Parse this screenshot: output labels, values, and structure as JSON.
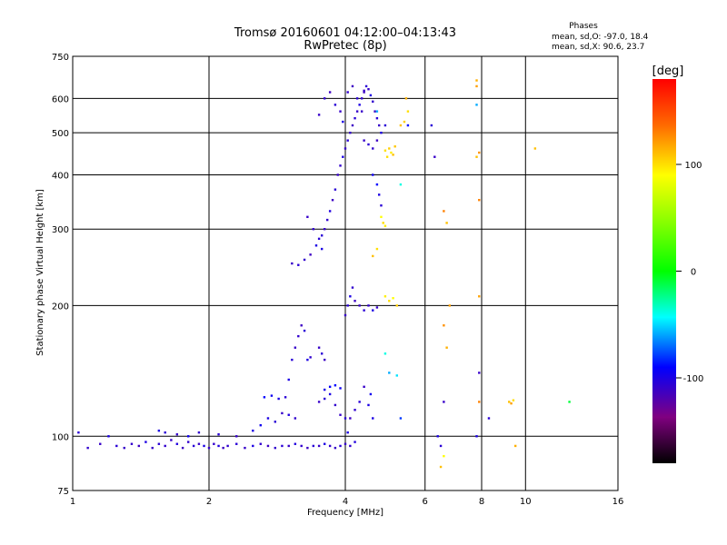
{
  "chart_data": {
    "type": "scatter",
    "title": "Tromsø 20160601 04:12:00–04:13:43",
    "subtitle": "RwPretec (8p)",
    "xlabel": "Frequency [MHz]",
    "ylabel": "Stationary phase Virtual Height [km]",
    "x_scale": "log",
    "y_scale": "log",
    "xlim": [
      1,
      16
    ],
    "ylim": [
      75,
      750
    ],
    "x_ticks": [
      1,
      2,
      4,
      6,
      8,
      10,
      16
    ],
    "y_ticks": [
      75,
      100,
      200,
      300,
      400,
      500,
      600,
      750
    ],
    "phases_info": {
      "title": "Phases",
      "line_o": "mean, sd,O: -97.0, 18.4",
      "line_x": "mean, sd,X:  90.6, 23.7"
    },
    "colorbar": {
      "label": "[deg]",
      "range": [
        -180,
        180
      ],
      "ticks": [
        100,
        0,
        -100
      ],
      "tick_labels": [
        "100",
        "0",
        "-100"
      ]
    },
    "grid": true,
    "series": [
      {
        "points": [
          [
            0.97,
            90,
            -110
          ],
          [
            1.03,
            102,
            -105
          ],
          [
            1.08,
            94,
            -108
          ],
          [
            1.15,
            96,
            -110
          ],
          [
            1.2,
            100,
            -100
          ],
          [
            1.25,
            95,
            -105
          ],
          [
            1.3,
            94,
            -110
          ],
          [
            1.35,
            96,
            -108
          ],
          [
            1.4,
            95,
            -112
          ],
          [
            1.45,
            97,
            -100
          ],
          [
            1.5,
            94,
            -110
          ],
          [
            1.55,
            96,
            -105
          ],
          [
            1.6,
            95,
            -108
          ],
          [
            1.65,
            98,
            -110
          ],
          [
            1.7,
            96,
            -102
          ],
          [
            1.75,
            94,
            -112
          ],
          [
            1.8,
            97,
            -108
          ],
          [
            1.85,
            95,
            -105
          ],
          [
            1.9,
            96,
            -110
          ],
          [
            1.95,
            95,
            -100
          ],
          [
            2.0,
            94,
            -110
          ],
          [
            2.05,
            96,
            -108
          ],
          [
            2.1,
            95,
            -102
          ],
          [
            2.15,
            94,
            -112
          ],
          [
            2.2,
            95,
            -108
          ],
          [
            2.3,
            96,
            -105
          ],
          [
            2.4,
            94,
            -110
          ],
          [
            2.5,
            95,
            -100
          ],
          [
            2.6,
            96,
            -108
          ],
          [
            2.7,
            95,
            -112
          ],
          [
            2.8,
            94,
            -108
          ],
          [
            2.9,
            95,
            -105
          ],
          [
            3.0,
            95,
            -110
          ],
          [
            3.1,
            96,
            -102
          ],
          [
            3.2,
            95,
            -108
          ],
          [
            3.3,
            94,
            -112
          ],
          [
            3.4,
            95,
            -105
          ],
          [
            3.5,
            95,
            -110
          ],
          [
            3.6,
            96,
            -100
          ],
          [
            3.7,
            95,
            -108
          ],
          [
            3.8,
            94,
            -110
          ],
          [
            3.9,
            95,
            -105
          ],
          [
            4.0,
            96,
            -110
          ],
          [
            4.1,
            95,
            -108
          ],
          [
            4.2,
            97,
            -102
          ],
          [
            1.55,
            103,
            -100
          ],
          [
            1.6,
            102,
            -105
          ],
          [
            1.7,
            101,
            -110
          ],
          [
            1.8,
            100,
            -95
          ],
          [
            1.9,
            102,
            -108
          ],
          [
            2.1,
            101,
            -105
          ],
          [
            2.3,
            100,
            -110
          ],
          [
            2.5,
            103,
            -100
          ],
          [
            2.6,
            106,
            -95
          ],
          [
            2.7,
            110,
            -100
          ],
          [
            2.8,
            108,
            -105
          ],
          [
            2.9,
            113,
            -110
          ],
          [
            3.0,
            112,
            -102
          ],
          [
            3.1,
            110,
            -108
          ],
          [
            2.65,
            123,
            -90
          ],
          [
            2.75,
            124,
            -95
          ],
          [
            2.85,
            122,
            -100
          ],
          [
            2.95,
            123,
            -105
          ],
          [
            3.0,
            135,
            -100
          ],
          [
            3.05,
            150,
            -105
          ],
          [
            3.1,
            160,
            -110
          ],
          [
            3.15,
            170,
            -108
          ],
          [
            3.2,
            180,
            -112
          ],
          [
            3.25,
            175,
            -105
          ],
          [
            3.3,
            150,
            -100
          ],
          [
            3.35,
            152,
            -108
          ],
          [
            3.5,
            160,
            -110
          ],
          [
            3.55,
            155,
            -105
          ],
          [
            3.6,
            150,
            -112
          ],
          [
            3.5,
            120,
            -110
          ],
          [
            3.6,
            122,
            -105
          ],
          [
            3.7,
            125,
            -100
          ],
          [
            3.8,
            118,
            -108
          ],
          [
            3.9,
            112,
            -110
          ],
          [
            4.0,
            110,
            -105
          ],
          [
            4.05,
            102,
            -100
          ],
          [
            4.1,
            110,
            -112
          ],
          [
            4.2,
            115,
            -108
          ],
          [
            3.6,
            128,
            -98
          ],
          [
            3.7,
            130,
            -92
          ],
          [
            3.8,
            131,
            -90
          ],
          [
            3.9,
            129,
            -95
          ],
          [
            4.0,
            190,
            -110
          ],
          [
            4.05,
            200,
            -105
          ],
          [
            4.1,
            210,
            -100
          ],
          [
            4.15,
            220,
            -108
          ],
          [
            4.2,
            205,
            -112
          ],
          [
            4.3,
            200,
            -110
          ],
          [
            4.4,
            195,
            -105
          ],
          [
            4.5,
            200,
            -108
          ],
          [
            4.6,
            195,
            -100
          ],
          [
            4.7,
            198,
            -110
          ],
          [
            4.3,
            120,
            -105
          ],
          [
            4.4,
            130,
            -110
          ],
          [
            4.5,
            118,
            -100
          ],
          [
            4.55,
            125,
            -95
          ],
          [
            4.6,
            110,
            -100
          ],
          [
            3.05,
            250,
            -110
          ],
          [
            3.15,
            248,
            -105
          ],
          [
            3.25,
            255,
            -108
          ],
          [
            3.35,
            262,
            -112
          ],
          [
            3.45,
            275,
            -100
          ],
          [
            3.55,
            290,
            -105
          ],
          [
            3.6,
            300,
            -110
          ],
          [
            3.65,
            315,
            -108
          ],
          [
            3.7,
            330,
            -102
          ],
          [
            3.75,
            350,
            -112
          ],
          [
            3.8,
            370,
            -105
          ],
          [
            3.85,
            400,
            -110
          ],
          [
            3.9,
            420,
            -108
          ],
          [
            3.95,
            440,
            -100
          ],
          [
            4.0,
            460,
            -110
          ],
          [
            4.05,
            480,
            -105
          ],
          [
            4.1,
            500,
            -108
          ],
          [
            4.15,
            520,
            -112
          ],
          [
            4.2,
            540,
            -105
          ],
          [
            4.25,
            560,
            -110
          ],
          [
            4.3,
            580,
            -100
          ],
          [
            4.35,
            600,
            -108
          ],
          [
            4.4,
            620,
            -112
          ],
          [
            4.45,
            640,
            -105
          ],
          [
            4.5,
            630,
            -110
          ],
          [
            4.55,
            610,
            -100
          ],
          [
            4.6,
            590,
            -108
          ],
          [
            4.65,
            560,
            -112
          ],
          [
            4.7,
            540,
            -105
          ],
          [
            4.75,
            520,
            -110
          ],
          [
            4.4,
            480,
            -110
          ],
          [
            4.5,
            470,
            -105
          ],
          [
            4.6,
            460,
            -108
          ],
          [
            4.7,
            480,
            -112
          ],
          [
            4.8,
            500,
            -100
          ],
          [
            4.9,
            520,
            -105
          ],
          [
            3.5,
            550,
            -110
          ],
          [
            3.6,
            600,
            -108
          ],
          [
            3.7,
            620,
            -112
          ],
          [
            3.8,
            580,
            -105
          ],
          [
            3.9,
            560,
            -110
          ],
          [
            3.95,
            530,
            -100
          ],
          [
            4.05,
            620,
            -108
          ],
          [
            4.15,
            640,
            -112
          ],
          [
            4.25,
            600,
            -105
          ],
          [
            4.35,
            560,
            -110
          ],
          [
            3.3,
            320,
            -110
          ],
          [
            3.4,
            300,
            -108
          ],
          [
            3.5,
            285,
            -105
          ],
          [
            3.55,
            270,
            -100
          ],
          [
            4.6,
            400,
            -95
          ],
          [
            4.7,
            380,
            -90
          ],
          [
            4.75,
            360,
            -100
          ],
          [
            4.8,
            340,
            -105
          ],
          [
            4.9,
            455,
            100
          ],
          [
            5.0,
            460,
            105
          ],
          [
            5.05,
            450,
            95
          ],
          [
            5.1,
            445,
            110
          ],
          [
            4.95,
            440,
            100
          ],
          [
            5.15,
            465,
            108
          ],
          [
            4.8,
            320,
            90
          ],
          [
            4.85,
            310,
            100
          ],
          [
            4.9,
            305,
            95
          ],
          [
            4.9,
            210,
            95
          ],
          [
            5.0,
            205,
            100
          ],
          [
            5.1,
            208,
            90
          ],
          [
            5.2,
            200,
            105
          ],
          [
            4.6,
            260,
            110
          ],
          [
            4.7,
            270,
            100
          ],
          [
            5.3,
            520,
            110
          ],
          [
            5.4,
            530,
            105
          ],
          [
            5.5,
            560,
            100
          ],
          [
            5.45,
            600,
            115
          ],
          [
            5.0,
            140,
            -60
          ],
          [
            5.2,
            138,
            -50
          ],
          [
            4.9,
            155,
            -40
          ],
          [
            5.3,
            380,
            -40
          ],
          [
            5.5,
            520,
            -90
          ],
          [
            5.3,
            110,
            -80
          ],
          [
            6.2,
            520,
            -105
          ],
          [
            6.3,
            440,
            -110
          ],
          [
            6.4,
            100,
            -100
          ],
          [
            6.5,
            95,
            -105
          ],
          [
            6.6,
            330,
            130
          ],
          [
            6.7,
            310,
            110
          ],
          [
            6.8,
            200,
            120
          ],
          [
            6.6,
            180,
            125
          ],
          [
            6.7,
            160,
            115
          ],
          [
            6.6,
            120,
            -110
          ],
          [
            6.6,
            90,
            90
          ],
          [
            6.5,
            85,
            110
          ],
          [
            7.8,
            660,
            115
          ],
          [
            7.8,
            640,
            120
          ],
          [
            7.8,
            580,
            -60
          ],
          [
            7.9,
            450,
            125
          ],
          [
            7.8,
            440,
            110
          ],
          [
            7.9,
            350,
            130
          ],
          [
            7.9,
            210,
            120
          ],
          [
            7.9,
            140,
            -110
          ],
          [
            7.9,
            120,
            130
          ],
          [
            7.8,
            100,
            -100
          ],
          [
            8.3,
            110,
            -105
          ],
          [
            9.2,
            120,
            110
          ],
          [
            9.4,
            121,
            100
          ],
          [
            9.3,
            119,
            120
          ],
          [
            9.5,
            95,
            115
          ],
          [
            10.5,
            460,
            110
          ],
          [
            12.5,
            120,
            -10
          ],
          [
            4.4,
            625,
            -110
          ],
          [
            4.7,
            560,
            -60
          ]
        ]
      }
    ]
  }
}
